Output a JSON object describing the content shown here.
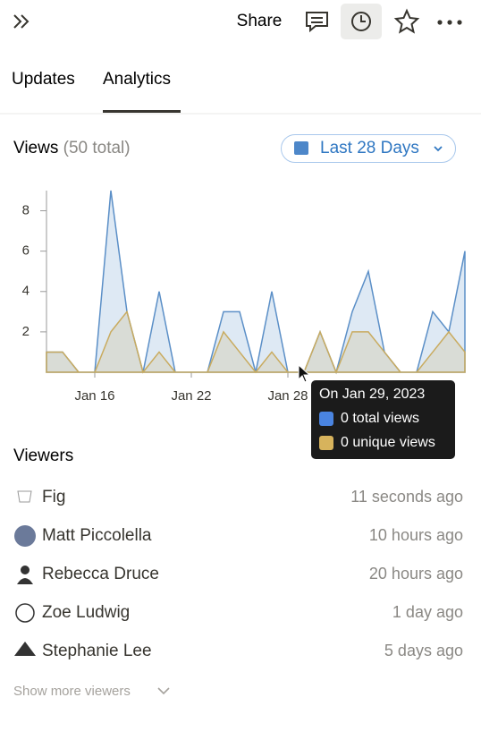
{
  "toolbar": {
    "share": "Share"
  },
  "tabs": [
    "Updates",
    "Analytics"
  ],
  "views": {
    "title": "Views",
    "total": "(50 total)",
    "range_button": "Last 28 Days"
  },
  "chart_data": {
    "type": "area",
    "categories": [
      null,
      null,
      null,
      "Jan 16",
      null,
      null,
      null,
      null,
      null,
      "Jan 22",
      null,
      null,
      null,
      null,
      null,
      "Jan 28",
      null,
      null,
      null,
      null,
      null,
      null,
      null,
      null,
      null,
      null,
      null
    ],
    "series": [
      {
        "color": "#5b8fc7",
        "values": [
          1,
          1,
          0,
          0,
          9,
          3,
          0,
          4,
          0,
          0,
          0,
          3,
          3,
          0,
          4,
          0,
          0,
          2,
          0,
          3,
          5,
          1,
          0,
          0,
          3,
          2,
          6
        ]
      },
      {
        "color": "#c9ab5f",
        "values": [
          1,
          1,
          0,
          0,
          2,
          3,
          0,
          1,
          0,
          0,
          0,
          2,
          1,
          0,
          1,
          0,
          0,
          2,
          0,
          2,
          2,
          1,
          0,
          0,
          1,
          2,
          1
        ]
      }
    ],
    "ylim": [
      0,
      9
    ],
    "yticks": [
      2,
      4,
      6,
      8
    ]
  },
  "tooltip": {
    "title": "On Jan 29, 2023",
    "lines": [
      {
        "color": "#4a84e0",
        "text": "0 total views"
      },
      {
        "color": "#d7b35c",
        "text": "0 unique views"
      }
    ]
  },
  "viewers": {
    "title": "Viewers",
    "rows": [
      {
        "name": "Fig",
        "time": "11 seconds ago"
      },
      {
        "name": "Matt Piccolella",
        "time": "10 hours ago"
      },
      {
        "name": "Rebecca Druce",
        "time": "20 hours ago"
      },
      {
        "name": "Zoe Ludwig",
        "time": "1 day ago"
      },
      {
        "name": "Stephanie Lee",
        "time": "5 days ago"
      }
    ],
    "more": "Show more viewers"
  }
}
